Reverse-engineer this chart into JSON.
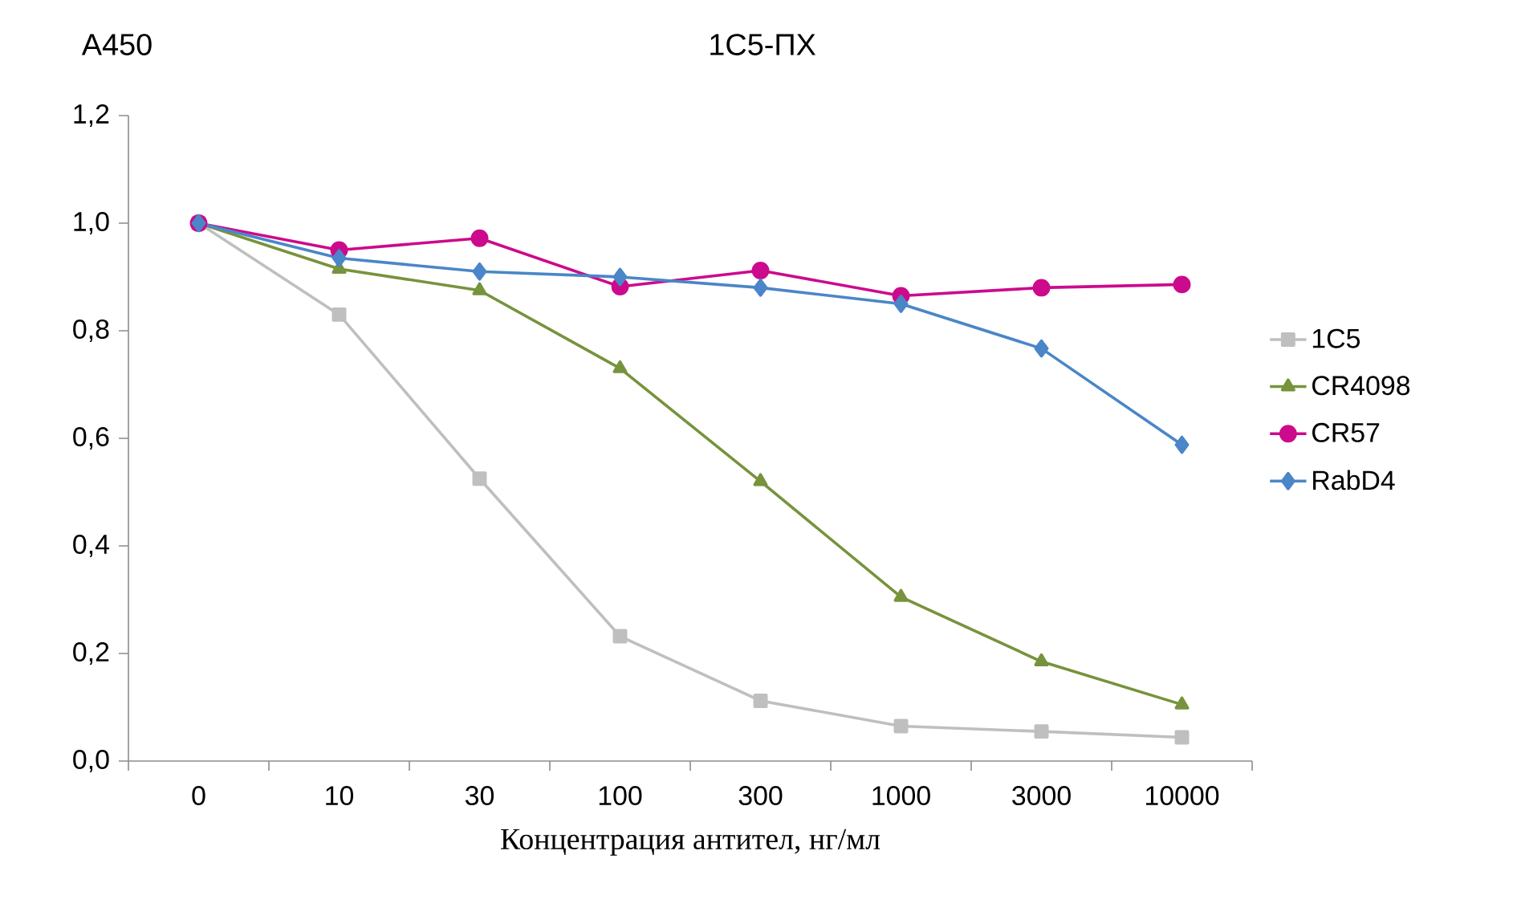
{
  "chart_data": {
    "type": "line",
    "title": "1C5-ПХ",
    "ylabel": "A450",
    "xlabel": "Концентрация антител, нг/мл",
    "categories": [
      "0",
      "10",
      "30",
      "100",
      "300",
      "1000",
      "3000",
      "10000"
    ],
    "ylim": [
      0,
      1.2
    ],
    "yticks": [
      {
        "value": 0,
        "label": "0,0"
      },
      {
        "value": 0.2,
        "label": "0,2"
      },
      {
        "value": 0.4,
        "label": "0,4"
      },
      {
        "value": 0.6,
        "label": "0,6"
      },
      {
        "value": 0.8,
        "label": "0,8"
      },
      {
        "value": 1.0,
        "label": "1,0"
      },
      {
        "value": 1.2,
        "label": "1,2"
      }
    ],
    "grid": false,
    "legend": "right",
    "line_style": "solid",
    "series": [
      {
        "name": "1C5",
        "color": "#bfbfbf",
        "marker": "square",
        "values": [
          1.0,
          0.83,
          0.525,
          0.232,
          0.112,
          0.065,
          0.055,
          0.044
        ]
      },
      {
        "name": "CR4098",
        "color": "#77933c",
        "marker": "triangle",
        "values": [
          1.0,
          0.915,
          0.875,
          0.73,
          0.52,
          0.305,
          0.185,
          0.105
        ]
      },
      {
        "name": "CR57",
        "color": "#cc0a8c",
        "marker": "circle",
        "values": [
          1.0,
          0.95,
          0.972,
          0.882,
          0.912,
          0.865,
          0.88,
          0.886
        ]
      },
      {
        "name": "RabD4",
        "color": "#4a86c8",
        "marker": "diamond",
        "values": [
          1.0,
          0.935,
          0.91,
          0.9,
          0.88,
          0.85,
          0.767,
          0.588
        ]
      }
    ]
  }
}
